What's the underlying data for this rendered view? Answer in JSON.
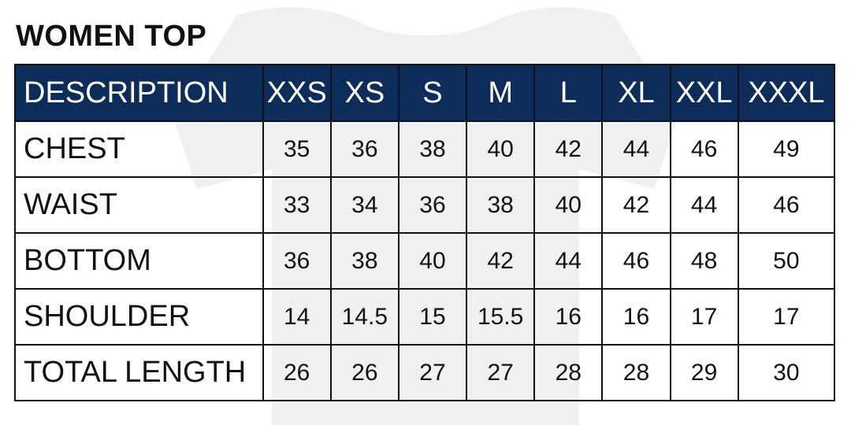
{
  "title": "WOMEN TOP",
  "header": {
    "description": "DESCRIPTION",
    "sizes": [
      "XXS",
      "XS",
      "S",
      "M",
      "L",
      "XL",
      "XXL",
      "XXXL"
    ]
  },
  "rows": [
    {
      "label": "CHEST",
      "values": [
        "35",
        "36",
        "38",
        "40",
        "42",
        "44",
        "46",
        "49"
      ]
    },
    {
      "label": "WAIST",
      "values": [
        "33",
        "34",
        "36",
        "38",
        "40",
        "42",
        "44",
        "46"
      ]
    },
    {
      "label": "BOTTOM",
      "values": [
        "36",
        "38",
        "40",
        "42",
        "44",
        "46",
        "48",
        "50"
      ]
    },
    {
      "label": "SHOULDER",
      "values": [
        "14",
        "14.5",
        "15",
        "15.5",
        "16",
        "16",
        "17",
        "17"
      ]
    },
    {
      "label": "TOTAL LENGTH",
      "values": [
        "26",
        "26",
        "27",
        "27",
        "28",
        "28",
        "29",
        "30"
      ]
    }
  ],
  "colors": {
    "header_bg": "#0c2d59",
    "header_text": "#ffffff",
    "border": "#111111",
    "shirt_watermark": "#eef0f2"
  },
  "background_icon": "t-shirt-watermark"
}
